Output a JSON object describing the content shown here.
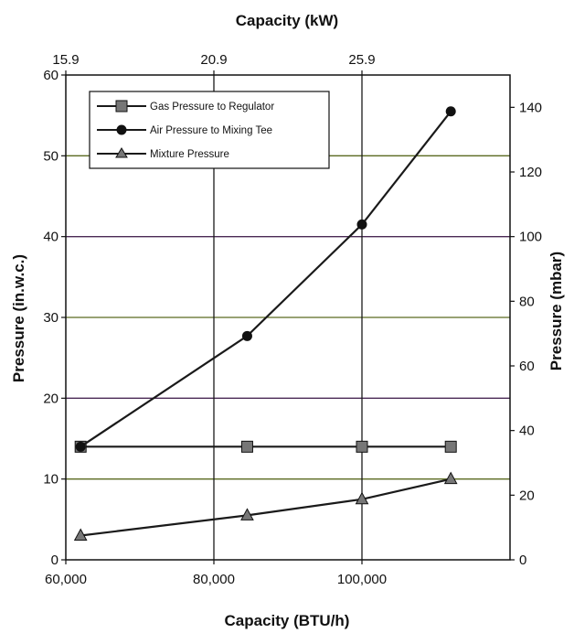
{
  "chart_data": {
    "type": "line",
    "x": [
      62000,
      84500,
      100000,
      112000
    ],
    "series": [
      {
        "name": "Gas Pressure to Regulator",
        "values": [
          14,
          14,
          14,
          14
        ],
        "marker": "square"
      },
      {
        "name": "Air Pressure to Mixing Tee",
        "values": [
          14,
          27.7,
          41.5,
          55.5
        ],
        "marker": "circle"
      },
      {
        "name": "Mixture Pressure",
        "values": [
          3,
          5.5,
          7.5,
          10
        ],
        "marker": "triangle"
      }
    ],
    "xlabel": "Capacity (BTU/h)",
    "ylabel": "Pressure (in.w.c.)",
    "x2label": "Capacity (kW)",
    "y2label": "Pressure (mbar)",
    "xlim": [
      60000,
      120000
    ],
    "ylim": [
      0,
      60
    ],
    "y2lim": [
      0,
      150
    ],
    "xticks": [
      {
        "value": 60000,
        "label": "60,000"
      },
      {
        "value": 80000,
        "label": "80,000"
      },
      {
        "value": 100000,
        "label": "100,000"
      }
    ],
    "yticks": [
      0,
      10,
      20,
      30,
      40,
      50,
      60
    ],
    "x2ticks": [
      {
        "value": 60000,
        "label": "15.9"
      },
      {
        "value": 80000,
        "label": "20.9"
      },
      {
        "value": 100000,
        "label": "25.9"
      }
    ],
    "y2ticks": [
      0,
      20,
      40,
      60,
      80,
      100,
      120,
      140
    ],
    "grid": true,
    "legend_position": "top-left",
    "colors": {
      "lines": "#1a1a1a",
      "grid_v": "#1a1a1a",
      "grid_h_a": "#4a2a55",
      "grid_h_b": "#5a6a20"
    }
  }
}
